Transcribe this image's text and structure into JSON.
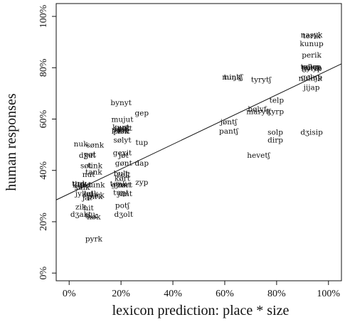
{
  "chart_data": {
    "type": "scatter",
    "xlabel": "lexicon prediction: place * size",
    "ylabel": "human responses",
    "xlim": [
      -0.05,
      1.05
    ],
    "ylim": [
      -0.03,
      1.05
    ],
    "x_ticks": [
      "0%",
      "20%",
      "40%",
      "60%",
      "80%",
      "100%"
    ],
    "y_ticks": [
      "0%",
      "20%",
      "40%",
      "60%",
      "80%",
      "100%"
    ],
    "grid": false,
    "legend": "none",
    "fit_line": {
      "x": [
        -0.05,
        1.05
      ],
      "y": [
        0.285,
        0.815
      ]
    },
    "points": [
      {
        "label": "nuk",
        "x": 0.045,
        "y": 0.505
      },
      {
        "label": "sønk",
        "x": 0.1,
        "y": 0.5
      },
      {
        "label": "dʒut",
        "x": 0.07,
        "y": 0.46
      },
      {
        "label": "pøt",
        "x": 0.08,
        "y": 0.465
      },
      {
        "label": "søt",
        "x": 0.065,
        "y": 0.42
      },
      {
        "label": "tink",
        "x": 0.1,
        "y": 0.42
      },
      {
        "label": "tank",
        "x": 0.095,
        "y": 0.395
      },
      {
        "label": "nut",
        "x": 0.075,
        "y": 0.385
      },
      {
        "label": "tup",
        "x": 0.035,
        "y": 0.35
      },
      {
        "label": "tøk",
        "x": 0.045,
        "y": 0.35
      },
      {
        "label": "kuk",
        "x": 0.04,
        "y": 0.345
      },
      {
        "label": "løkt",
        "x": 0.06,
        "y": 0.345
      },
      {
        "label": "tunk",
        "x": 0.105,
        "y": 0.345
      },
      {
        "label": "sulk",
        "x": 0.05,
        "y": 0.335
      },
      {
        "label": "jyk",
        "x": 0.045,
        "y": 0.31
      },
      {
        "label": "jøt",
        "x": 0.075,
        "y": 0.31
      },
      {
        "label": "lulk",
        "x": 0.085,
        "y": 0.31
      },
      {
        "label": "tirk",
        "x": 0.11,
        "y": 0.305
      },
      {
        "label": "pirk",
        "x": 0.1,
        "y": 0.3
      },
      {
        "label": "jat",
        "x": 0.07,
        "y": 0.295
      },
      {
        "label": "zik",
        "x": 0.045,
        "y": 0.26
      },
      {
        "label": "hit",
        "x": 0.075,
        "y": 0.255
      },
      {
        "label": "dʒakt",
        "x": 0.045,
        "y": 0.23
      },
      {
        "label": "tilk",
        "x": 0.085,
        "y": 0.225
      },
      {
        "label": "høk",
        "x": 0.095,
        "y": 0.22
      },
      {
        "label": "pyrk",
        "x": 0.095,
        "y": 0.135
      },
      {
        "label": "bynyt",
        "x": 0.2,
        "y": 0.665
      },
      {
        "label": "mujut",
        "x": 0.205,
        "y": 0.6
      },
      {
        "label": "kunt",
        "x": 0.2,
        "y": 0.57
      },
      {
        "label": "jask",
        "x": 0.205,
        "y": 0.565
      },
      {
        "label": "pust",
        "x": 0.195,
        "y": 0.56
      },
      {
        "label": "palt",
        "x": 0.215,
        "y": 0.565
      },
      {
        "label": "pisk",
        "x": 0.2,
        "y": 0.555
      },
      {
        "label": "følt",
        "x": 0.21,
        "y": 0.555
      },
      {
        "label": "sølyt",
        "x": 0.205,
        "y": 0.52
      },
      {
        "label": "gexit",
        "x": 0.205,
        "y": 0.47
      },
      {
        "label": "jøt",
        "x": 0.21,
        "y": 0.46
      },
      {
        "label": "gønt",
        "x": 0.21,
        "y": 0.43
      },
      {
        "label": "bult",
        "x": 0.2,
        "y": 0.39
      },
      {
        "label": "zelt",
        "x": 0.21,
        "y": 0.385
      },
      {
        "label": "kørt",
        "x": 0.205,
        "y": 0.37
      },
      {
        "label": "tønk",
        "x": 0.19,
        "y": 0.35
      },
      {
        "label": "gjunt",
        "x": 0.2,
        "y": 0.345
      },
      {
        "label": "zørt",
        "x": 0.215,
        "y": 0.345
      },
      {
        "label": "tuŋt",
        "x": 0.2,
        "y": 0.315
      },
      {
        "label": "jimt",
        "x": 0.215,
        "y": 0.31
      },
      {
        "label": "potʃ",
        "x": 0.205,
        "y": 0.265
      },
      {
        "label": "dʒolt",
        "x": 0.21,
        "y": 0.23
      },
      {
        "label": "gep",
        "x": 0.28,
        "y": 0.625
      },
      {
        "label": "tup",
        "x": 0.28,
        "y": 0.51
      },
      {
        "label": "dap",
        "x": 0.28,
        "y": 0.43
      },
      {
        "label": "zyp",
        "x": 0.28,
        "y": 0.355
      },
      {
        "label": "miŋkʃ",
        "x": 0.63,
        "y": 0.765
      },
      {
        "label": "tuntʃ",
        "x": 0.63,
        "y": 0.765
      },
      {
        "label": "tyrytʃ",
        "x": 0.74,
        "y": 0.755
      },
      {
        "label": "jøntʃ",
        "x": 0.615,
        "y": 0.59
      },
      {
        "label": "pantʃ",
        "x": 0.615,
        "y": 0.555
      },
      {
        "label": "bølyf",
        "x": 0.725,
        "y": 0.64
      },
      {
        "label": "marytʃ",
        "x": 0.73,
        "y": 0.63
      },
      {
        "label": "hevetʃ",
        "x": 0.73,
        "y": 0.46
      },
      {
        "label": "telp",
        "x": 0.8,
        "y": 0.675
      },
      {
        "label": "kyrp",
        "x": 0.795,
        "y": 0.63
      },
      {
        "label": "solp",
        "x": 0.795,
        "y": 0.55
      },
      {
        "label": "dirp",
        "x": 0.795,
        "y": 0.52
      },
      {
        "label": "nasyk",
        "x": 0.935,
        "y": 0.93
      },
      {
        "label": "terik",
        "x": 0.935,
        "y": 0.925
      },
      {
        "label": "kunup",
        "x": 0.935,
        "y": 0.895
      },
      {
        "label": "perik",
        "x": 0.935,
        "y": 0.85
      },
      {
        "label": "tølup",
        "x": 0.93,
        "y": 0.805
      },
      {
        "label": "relep",
        "x": 0.935,
        "y": 0.805
      },
      {
        "label": "ʒyrik",
        "x": 0.935,
        "y": 0.8
      },
      {
        "label": "bolyp",
        "x": 0.935,
        "y": 0.8
      },
      {
        "label": "gølup",
        "x": 0.935,
        "y": 0.765
      },
      {
        "label": "nuliŋk",
        "x": 0.93,
        "y": 0.76
      },
      {
        "label": "jijap",
        "x": 0.935,
        "y": 0.725
      },
      {
        "label": "dʒisip",
        "x": 0.935,
        "y": 0.55
      }
    ]
  }
}
